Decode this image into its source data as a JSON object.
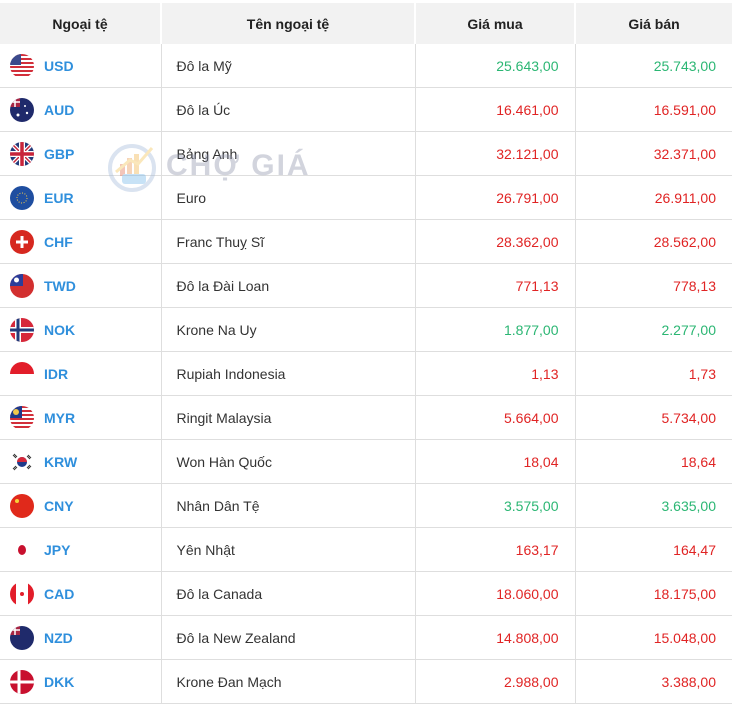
{
  "table": {
    "headers": {
      "currency": "Ngoại tệ",
      "name": "Tên ngoại tệ",
      "buy": "Giá mua",
      "sell": "Giá bán"
    },
    "rows": [
      {
        "code": "USD",
        "name": "Đô la Mỹ",
        "buy": "25.643,00",
        "sell": "25.743,00",
        "trend": "up",
        "flag": "us-flag-icon"
      },
      {
        "code": "AUD",
        "name": "Đô la Úc",
        "buy": "16.461,00",
        "sell": "16.591,00",
        "trend": "down",
        "flag": "au-flag-icon"
      },
      {
        "code": "GBP",
        "name": "Bảng Anh",
        "buy": "32.121,00",
        "sell": "32.371,00",
        "trend": "down",
        "flag": "gb-flag-icon"
      },
      {
        "code": "EUR",
        "name": "Euro",
        "buy": "26.791,00",
        "sell": "26.911,00",
        "trend": "down",
        "flag": "eu-flag-icon"
      },
      {
        "code": "CHF",
        "name": "Franc Thuỵ Sĩ",
        "buy": "28.362,00",
        "sell": "28.562,00",
        "trend": "down",
        "flag": "ch-flag-icon"
      },
      {
        "code": "TWD",
        "name": "Đô la Đài Loan",
        "buy": "771,13",
        "sell": "778,13",
        "trend": "down",
        "flag": "tw-flag-icon"
      },
      {
        "code": "NOK",
        "name": "Krone Na Uy",
        "buy": "1.877,00",
        "sell": "2.277,00",
        "trend": "up",
        "flag": "no-flag-icon"
      },
      {
        "code": "IDR",
        "name": "Rupiah Indonesia",
        "buy": "1,13",
        "sell": "1,73",
        "trend": "down",
        "flag": "id-flag-icon"
      },
      {
        "code": "MYR",
        "name": "Ringit Malaysia",
        "buy": "5.664,00",
        "sell": "5.734,00",
        "trend": "down",
        "flag": "my-flag-icon"
      },
      {
        "code": "KRW",
        "name": "Won Hàn Quốc",
        "buy": "18,04",
        "sell": "18,64",
        "trend": "down",
        "flag": "kr-flag-icon"
      },
      {
        "code": "CNY",
        "name": "Nhân Dân Tệ",
        "buy": "3.575,00",
        "sell": "3.635,00",
        "trend": "up",
        "flag": "cn-flag-icon"
      },
      {
        "code": "JPY",
        "name": "Yên Nhật",
        "buy": "163,17",
        "sell": "164,47",
        "trend": "down",
        "flag": "jp-flag-icon"
      },
      {
        "code": "CAD",
        "name": "Đô la Canada",
        "buy": "18.060,00",
        "sell": "18.175,00",
        "trend": "down",
        "flag": "ca-flag-icon"
      },
      {
        "code": "NZD",
        "name": "Đô la New Zealand",
        "buy": "14.808,00",
        "sell": "15.048,00",
        "trend": "down",
        "flag": "nz-flag-icon"
      },
      {
        "code": "DKK",
        "name": "Krone Đan Mạch",
        "buy": "2.988,00",
        "sell": "3.388,00",
        "trend": "down",
        "flag": "dk-flag-icon"
      }
    ]
  },
  "watermark": {
    "text": "CHỢ GIÁ"
  },
  "colors": {
    "up": "#2bb673",
    "down": "#e02424",
    "code": "#2f8fdc",
    "header_bg": "#f2f2f2"
  }
}
